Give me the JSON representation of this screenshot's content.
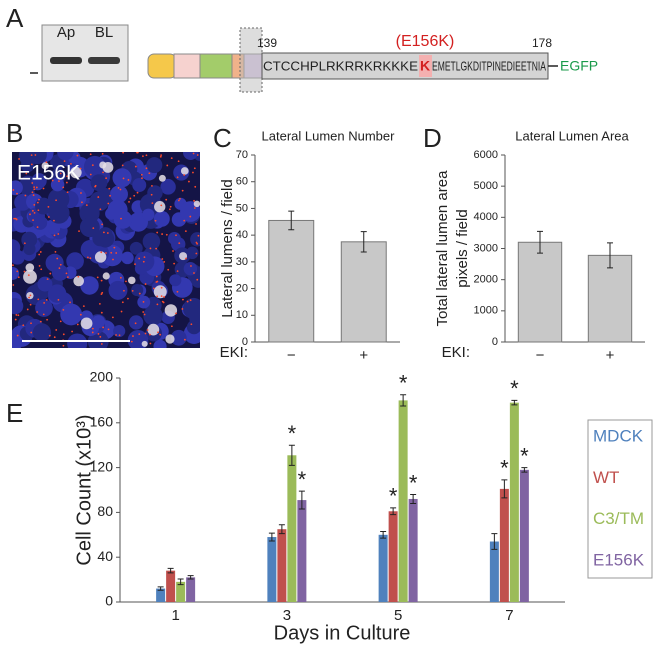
{
  "figure": {
    "a": {
      "panel": "A",
      "lanes": [
        "Ap",
        "BL"
      ],
      "start": 139,
      "end": 178,
      "mutation": "(E156K)",
      "sequence_before": "CTCCHPLRKRRKRKKKE",
      "mutated_residue": "K",
      "sequence_after": "EMETLGKDITPINEDIEETNIA",
      "tag": "EGFP"
    },
    "b": {
      "panel": "B",
      "label": "E156K"
    }
  },
  "chart_data": [
    {
      "type": "bar",
      "panel": "C",
      "title": "Lateral Lumen Number",
      "y_label": [
        "Lateral lumens / field"
      ],
      "x_label": "EKI:",
      "categories": [
        "−",
        "+"
      ],
      "values": [
        45.5,
        37.5
      ],
      "errors": [
        3.5,
        3.8
      ],
      "color": "#c8c8c8",
      "ylim": [
        0,
        70
      ],
      "yticks": [
        0,
        10,
        20,
        30,
        40,
        50,
        60,
        70
      ],
      "grid": false
    },
    {
      "type": "bar",
      "panel": "D",
      "title": "Lateral Lumen Area",
      "y_label": [
        "Total lateral lumen area",
        "pixels / field"
      ],
      "x_label": "EKI:",
      "categories": [
        "−",
        "+"
      ],
      "values": [
        3200,
        2780
      ],
      "errors": [
        350,
        400
      ],
      "color": "#c8c8c8",
      "ylim": [
        0,
        6000
      ],
      "yticks": [
        0,
        1000,
        2000,
        3000,
        4000,
        5000,
        6000
      ],
      "grid": false
    },
    {
      "type": "bar",
      "panel": "E",
      "y_label": [
        "Cell Count (x10³)"
      ],
      "x_label": "Days in Culture",
      "categories": [
        "1",
        "3",
        "5",
        "7"
      ],
      "series": [
        {
          "name": "MDCK",
          "color": "#4f81bd",
          "values": [
            12,
            58,
            60,
            54
          ],
          "errors": [
            1.5,
            3.5,
            3,
            7
          ],
          "significance": [
            null,
            null,
            null,
            null
          ]
        },
        {
          "name": "WT",
          "color": "#c0504d",
          "values": [
            28,
            65,
            81,
            101
          ],
          "errors": [
            2,
            4,
            3,
            8
          ],
          "significance": [
            null,
            null,
            "*",
            "*"
          ]
        },
        {
          "name": "C3/TM",
          "color": "#9bbb59",
          "values": [
            18,
            131,
            180,
            178
          ],
          "errors": [
            2.5,
            9,
            5,
            2
          ],
          "significance": [
            null,
            "*",
            "*",
            "*"
          ]
        },
        {
          "name": "E156K",
          "color": "#8064a2",
          "values": [
            22,
            91,
            92,
            118
          ],
          "errors": [
            1.5,
            8,
            4,
            2
          ],
          "significance": [
            null,
            "*",
            "*",
            "*"
          ]
        }
      ],
      "ylim": [
        0,
        200
      ],
      "yticks": [
        0,
        40,
        80,
        120,
        160,
        200
      ],
      "grid": false,
      "legend": "right"
    }
  ]
}
